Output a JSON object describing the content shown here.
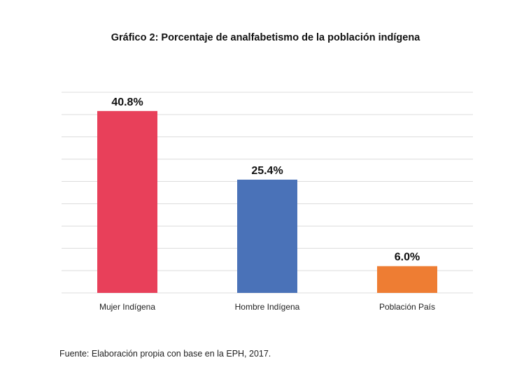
{
  "chart_data": {
    "type": "bar",
    "title": "Gráfico 2: Porcentaje de analfabetismo de la población indígena",
    "categories": [
      "Mujer Indígena",
      "Hombre Indígena",
      "Población País"
    ],
    "values": [
      40.8,
      25.4,
      6.0
    ],
    "data_labels": [
      "40.8%",
      "25.4%",
      "6.0%"
    ],
    "colors": [
      "#e8405a",
      "#4a72b8",
      "#ee7d33"
    ],
    "ylim": [
      0,
      45
    ],
    "grid": true,
    "grid_step": 5,
    "xlabel": "",
    "ylabel": ""
  },
  "source_note": "Fuente: Elaboración propia con base en la EPH, 2017."
}
